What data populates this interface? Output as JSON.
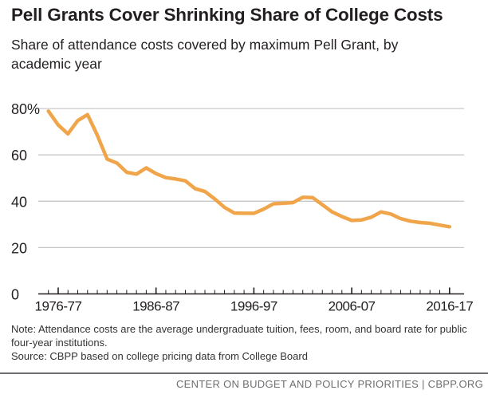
{
  "chart_data": {
    "type": "line",
    "title": "Pell Grants Cover Shrinking Share of College Costs",
    "subtitle": "Share of attendance costs covered by maximum Pell Grant, by academic year",
    "xlabel": "",
    "ylabel": "",
    "ylim": [
      0,
      80
    ],
    "yticks": [
      {
        "value": 80,
        "label": "80%"
      },
      {
        "value": 60,
        "label": "60"
      },
      {
        "value": 40,
        "label": "40"
      },
      {
        "value": 20,
        "label": "20"
      },
      {
        "value": 0,
        "label": "0"
      }
    ],
    "xticks": [
      {
        "year": 1976,
        "label": "1976-77"
      },
      {
        "year": 1986,
        "label": "1986-87"
      },
      {
        "year": 1996,
        "label": "1996-97"
      },
      {
        "year": 2006,
        "label": "2006-07"
      },
      {
        "year": 2016,
        "label": "2016-17"
      }
    ],
    "grid": true,
    "series": [
      {
        "name": "Share of attendance costs covered by maximum Pell Grant",
        "color": "#f0a54b",
        "x_start_year": 1975,
        "values": [
          78.9,
          72.9,
          69.1,
          74.8,
          77.4,
          68.5,
          58.2,
          56.5,
          52.5,
          51.7,
          54.4,
          51.9,
          50.2,
          49.6,
          48.8,
          45.4,
          44.2,
          41.0,
          37.3,
          34.9,
          34.8,
          34.8,
          36.6,
          38.9,
          39.1,
          39.4,
          41.7,
          41.6,
          38.5,
          35.4,
          33.4,
          31.7,
          31.9,
          33.1,
          35.4,
          34.5,
          32.5,
          31.4,
          30.8,
          30.5,
          29.7,
          29.0
        ]
      }
    ]
  },
  "note": "Note: Attendance costs are the average undergraduate tuition, fees, room, and board rate for public four-year institutions.",
  "source": "Source: CBPP based on college pricing data from College Board",
  "footer": "CENTER ON BUDGET AND POLICY PRIORITIES | CBPP.ORG"
}
